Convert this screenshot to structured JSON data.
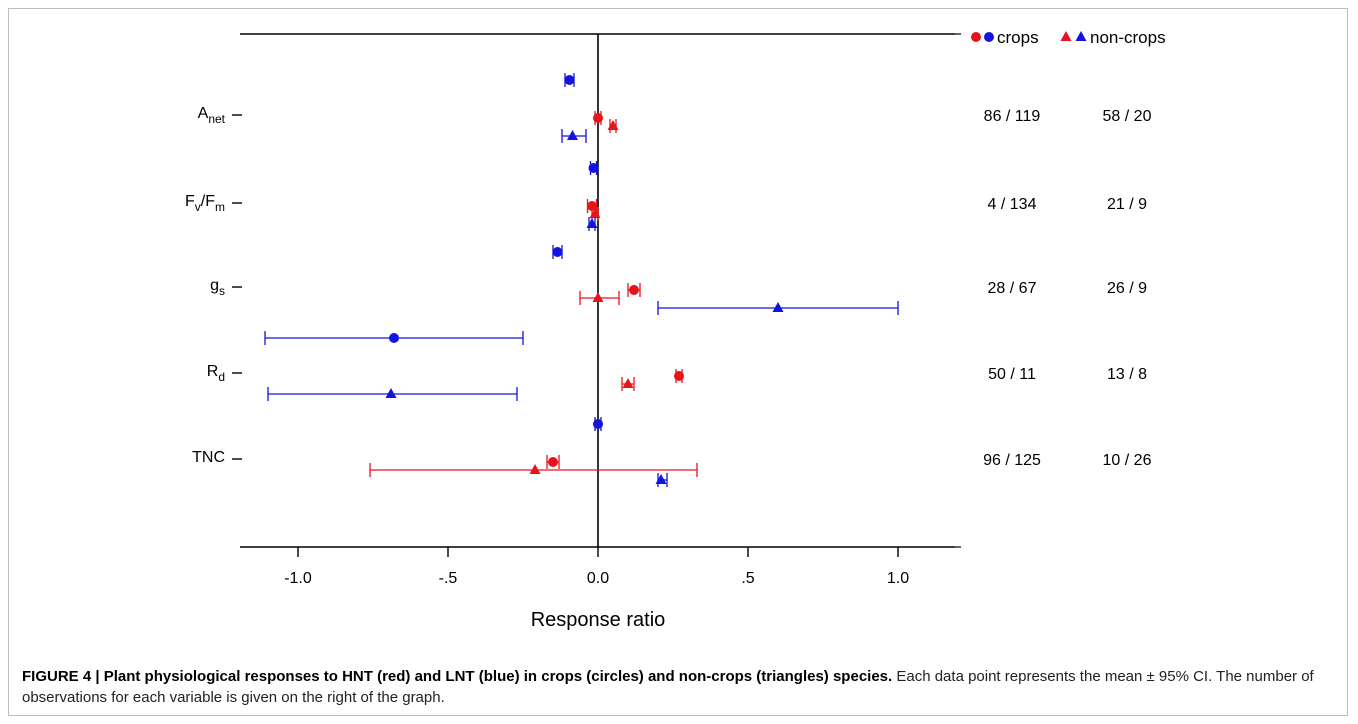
{
  "caption": {
    "label": "FIGURE 4 | Plant physiological responses to HNT (red) and LNT (blue) in crops (circles) and non-crops (triangles) species.",
    "text": " Each data point represents the mean ± 95% CI. The number of observations for each variable is given on the right of the graph."
  },
  "colors": {
    "hnt": "#e8141c",
    "lnt": "#1414e0"
  },
  "chart_data": {
    "type": "scatter",
    "title": "",
    "xlabel": "Response ratio",
    "ylabel": "",
    "xlim": [
      -1.2,
      1.2
    ],
    "xticks": [
      {
        "value": -1.0,
        "label": "-1.0"
      },
      {
        "value": -0.5,
        "label": "-.5"
      },
      {
        "value": 0.0,
        "label": "0.0"
      },
      {
        "value": 0.5,
        "label": ".5"
      },
      {
        "value": 1.0,
        "label": "1.0"
      }
    ],
    "grid": false,
    "legend": {
      "position": "top-right",
      "entries": [
        {
          "label": "crops",
          "marker": "circle",
          "colors": [
            "#e8141c",
            "#1414e0"
          ]
        },
        {
          "label": "non-crops",
          "marker": "triangle",
          "colors": [
            "#e8141c",
            "#1414e0"
          ]
        }
      ]
    },
    "variables": [
      {
        "id": "anet",
        "main": "A",
        "sub": "net",
        "counts_crops": "86 / 119",
        "counts_noncrops": "58 / 20"
      },
      {
        "id": "fvfm",
        "main": "F",
        "sub": "v",
        "main2": "/F",
        "sub2": "m",
        "counts_crops": "4 / 134",
        "counts_noncrops": "21 / 9"
      },
      {
        "id": "gs",
        "main": "g",
        "sub": "s",
        "counts_crops": "28 / 67",
        "counts_noncrops": "26 / 9"
      },
      {
        "id": "rd",
        "main": "R",
        "sub": "d",
        "counts_crops": "50 / 11",
        "counts_noncrops": "13 / 8"
      },
      {
        "id": "tnc",
        "main": "TNC",
        "sub": "",
        "counts_crops": "96 / 125",
        "counts_noncrops": "10 / 26"
      }
    ],
    "points": [
      {
        "variable": "anet",
        "treatment": "LNT",
        "group": "crops",
        "marker": "circle",
        "mean": -0.095,
        "ci": [
          -0.11,
          -0.08
        ]
      },
      {
        "variable": "anet",
        "treatment": "HNT",
        "group": "crops",
        "marker": "circle",
        "mean": 0.0,
        "ci": [
          -0.01,
          0.01
        ]
      },
      {
        "variable": "anet",
        "treatment": "HNT",
        "group": "non-crops",
        "marker": "triangle",
        "mean": 0.05,
        "ci": [
          0.04,
          0.06
        ]
      },
      {
        "variable": "anet",
        "treatment": "LNT",
        "group": "non-crops",
        "marker": "triangle",
        "mean": -0.085,
        "ci": [
          -0.12,
          -0.04
        ]
      },
      {
        "variable": "fvfm",
        "treatment": "LNT",
        "group": "crops",
        "marker": "circle",
        "mean": -0.015,
        "ci": [
          -0.025,
          -0.005
        ]
      },
      {
        "variable": "fvfm",
        "treatment": "HNT",
        "group": "crops",
        "marker": "circle",
        "mean": -0.02,
        "ci": [
          -0.035,
          -0.005
        ]
      },
      {
        "variable": "fvfm",
        "treatment": "HNT",
        "group": "non-crops",
        "marker": "triangle",
        "mean": -0.01,
        "ci": [
          -0.02,
          0.0
        ]
      },
      {
        "variable": "fvfm",
        "treatment": "LNT",
        "group": "non-crops",
        "marker": "triangle",
        "mean": -0.02,
        "ci": [
          -0.03,
          -0.01
        ]
      },
      {
        "variable": "gs",
        "treatment": "LNT",
        "group": "crops",
        "marker": "circle",
        "mean": -0.135,
        "ci": [
          -0.15,
          -0.12
        ]
      },
      {
        "variable": "gs",
        "treatment": "HNT",
        "group": "crops",
        "marker": "circle",
        "mean": 0.12,
        "ci": [
          0.1,
          0.14
        ]
      },
      {
        "variable": "gs",
        "treatment": "HNT",
        "group": "non-crops",
        "marker": "triangle",
        "mean": 0.0,
        "ci": [
          -0.06,
          0.07
        ]
      },
      {
        "variable": "gs",
        "treatment": "LNT",
        "group": "non-crops",
        "marker": "triangle",
        "mean": 0.6,
        "ci": [
          0.2,
          1.0
        ]
      },
      {
        "variable": "rd",
        "treatment": "LNT",
        "group": "crops",
        "marker": "circle",
        "mean": -0.68,
        "ci": [
          -1.11,
          -0.25
        ]
      },
      {
        "variable": "rd",
        "treatment": "HNT",
        "group": "crops",
        "marker": "circle",
        "mean": 0.27,
        "ci": [
          0.26,
          0.28
        ]
      },
      {
        "variable": "rd",
        "treatment": "HNT",
        "group": "non-crops",
        "marker": "triangle",
        "mean": 0.1,
        "ci": [
          0.08,
          0.12
        ]
      },
      {
        "variable": "rd",
        "treatment": "LNT",
        "group": "non-crops",
        "marker": "triangle",
        "mean": -0.69,
        "ci": [
          -1.1,
          -0.27
        ]
      },
      {
        "variable": "tnc",
        "treatment": "LNT",
        "group": "crops",
        "marker": "circle",
        "mean": 0.0,
        "ci": [
          -0.01,
          0.01
        ]
      },
      {
        "variable": "tnc",
        "treatment": "HNT",
        "group": "crops",
        "marker": "circle",
        "mean": -0.15,
        "ci": [
          -0.17,
          -0.13
        ]
      },
      {
        "variable": "tnc",
        "treatment": "HNT",
        "group": "non-crops",
        "marker": "triangle",
        "mean": -0.21,
        "ci": [
          -0.76,
          0.33
        ]
      },
      {
        "variable": "tnc",
        "treatment": "LNT",
        "group": "non-crops",
        "marker": "triangle",
        "mean": 0.21,
        "ci": [
          0.2,
          0.23
        ]
      }
    ]
  }
}
